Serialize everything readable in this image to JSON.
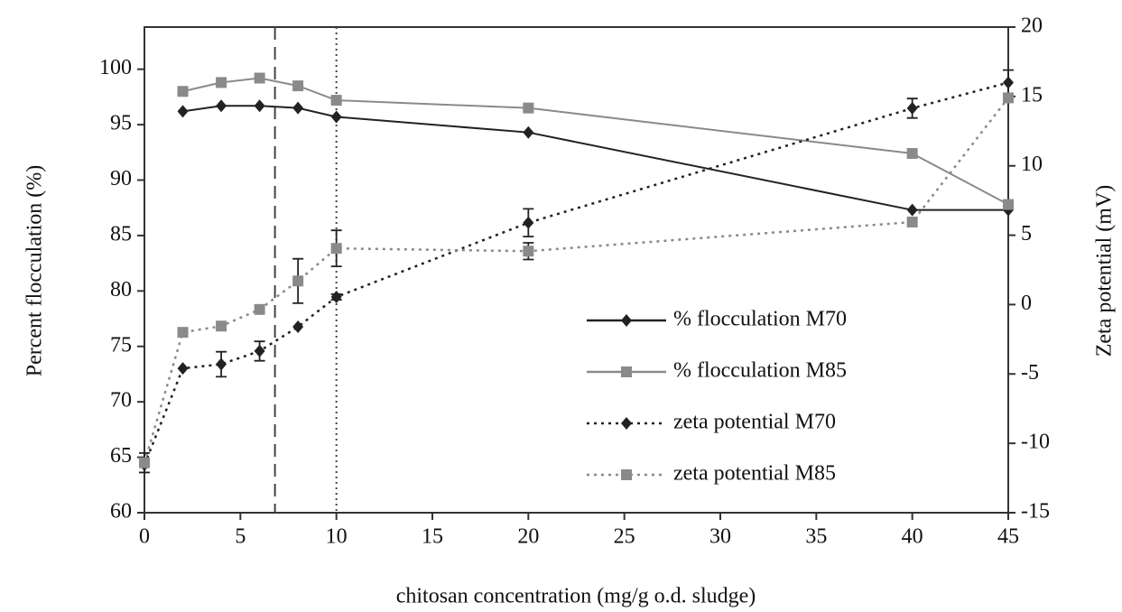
{
  "chart_data": {
    "type": "line",
    "xlabel": "chitosan concentration (mg/g o.d. sludge)",
    "ylabel": "Percent flocculation (%)",
    "y2label": "Zeta potential (mV)",
    "x": [
      0,
      2,
      4,
      6,
      8,
      10,
      20,
      40,
      45
    ],
    "xlim": [
      0,
      45
    ],
    "xticks": [
      0,
      5,
      10,
      15,
      20,
      25,
      30,
      35,
      40,
      45
    ],
    "ylim": [
      60,
      103.8
    ],
    "yticks": [
      60,
      65,
      70,
      75,
      80,
      85,
      90,
      95,
      100
    ],
    "y2lim": [
      -15,
      20
    ],
    "y2ticks": [
      -15,
      -10,
      -5,
      0,
      5,
      10,
      15,
      20
    ],
    "legend": "bottom-right",
    "vlines": [
      {
        "x": 6.8,
        "style": "dashed"
      },
      {
        "x": 10,
        "style": "dotted"
      }
    ],
    "series": [
      {
        "name": "% flocculation M70",
        "color": "#222222",
        "line_style": "solid",
        "marker": "diamond",
        "values": [
          null,
          96.2,
          96.7,
          96.7,
          96.5,
          95.7,
          94.3,
          87.3,
          87.3
        ]
      },
      {
        "name": "% flocculation M85",
        "color": "#8a8a8a",
        "line_style": "solid",
        "marker": "square",
        "values": [
          null,
          98.0,
          98.8,
          99.2,
          98.5,
          97.2,
          96.5,
          92.4,
          87.8
        ]
      },
      {
        "name": "zeta potential M70",
        "color": "#222222",
        "line_style": "dotted",
        "marker": "diamond",
        "axis": "y2",
        "values": [
          -11.55,
          -4.6,
          -4.3,
          -3.35,
          -1.6,
          0.55,
          5.9,
          14.15,
          16.0
        ],
        "errors": [
          null,
          null,
          0.9,
          0.7,
          null,
          0.2,
          1.0,
          0.7,
          0.9
        ]
      },
      {
        "name": "zeta potential M85",
        "color": "#8a8a8a",
        "line_style": "dotted",
        "marker": "square",
        "axis": "y2",
        "values": [
          -11.4,
          -2.0,
          -1.55,
          -0.35,
          1.7,
          4.05,
          3.85,
          5.95,
          14.9
        ],
        "errors": [
          0.7,
          null,
          null,
          null,
          1.6,
          1.3,
          0.6,
          null,
          null
        ]
      }
    ]
  }
}
